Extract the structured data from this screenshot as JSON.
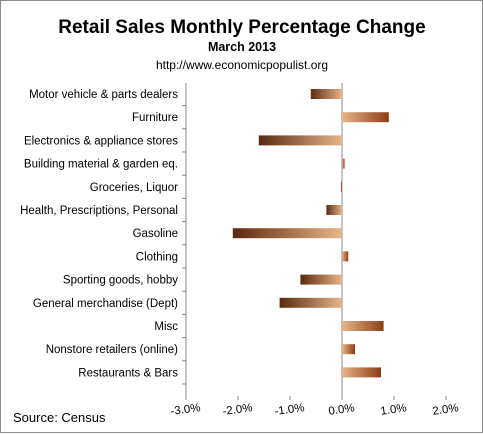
{
  "chart_data": {
    "type": "bar",
    "orientation": "horizontal",
    "title": "Retail Sales Monthly  Percentage Change",
    "subtitle": "March 2013",
    "url": "http://www.economicpopulist.org",
    "source": "Source:  Census",
    "categories": [
      "Motor vehicle & parts dealers",
      "Furniture",
      "Electronics & appliance stores",
      "Building material & garden eq.",
      "Groceries, Liquor",
      "Health, Prescriptions, Personal",
      "Gasoline",
      "Clothing",
      "Sporting goods, hobby",
      "General merchandise (Dept)",
      "Misc",
      "Nonstore retailers (online)",
      "Restaurants & Bars"
    ],
    "values": [
      -0.6,
      0.9,
      -1.6,
      0.05,
      -0.02,
      -0.3,
      -2.1,
      0.12,
      -0.8,
      -1.2,
      0.8,
      0.25,
      0.75
    ],
    "xlim": [
      -3.0,
      2.0
    ],
    "xticks": [
      -3.0,
      -2.0,
      -1.0,
      0.0,
      1.0,
      2.0
    ],
    "tick_labels": [
      "-3.0%",
      "-2.0%",
      "-1.0%",
      "0.0%",
      "1.0%",
      "2.0%"
    ],
    "grid": false,
    "legend": "none",
    "colors": {
      "negative_dark": "#5a2a10",
      "negative_light": "#e8b48a",
      "positive_dark": "#e8b48a",
      "positive_light": "#8b3e15",
      "axis": "#888888"
    }
  }
}
